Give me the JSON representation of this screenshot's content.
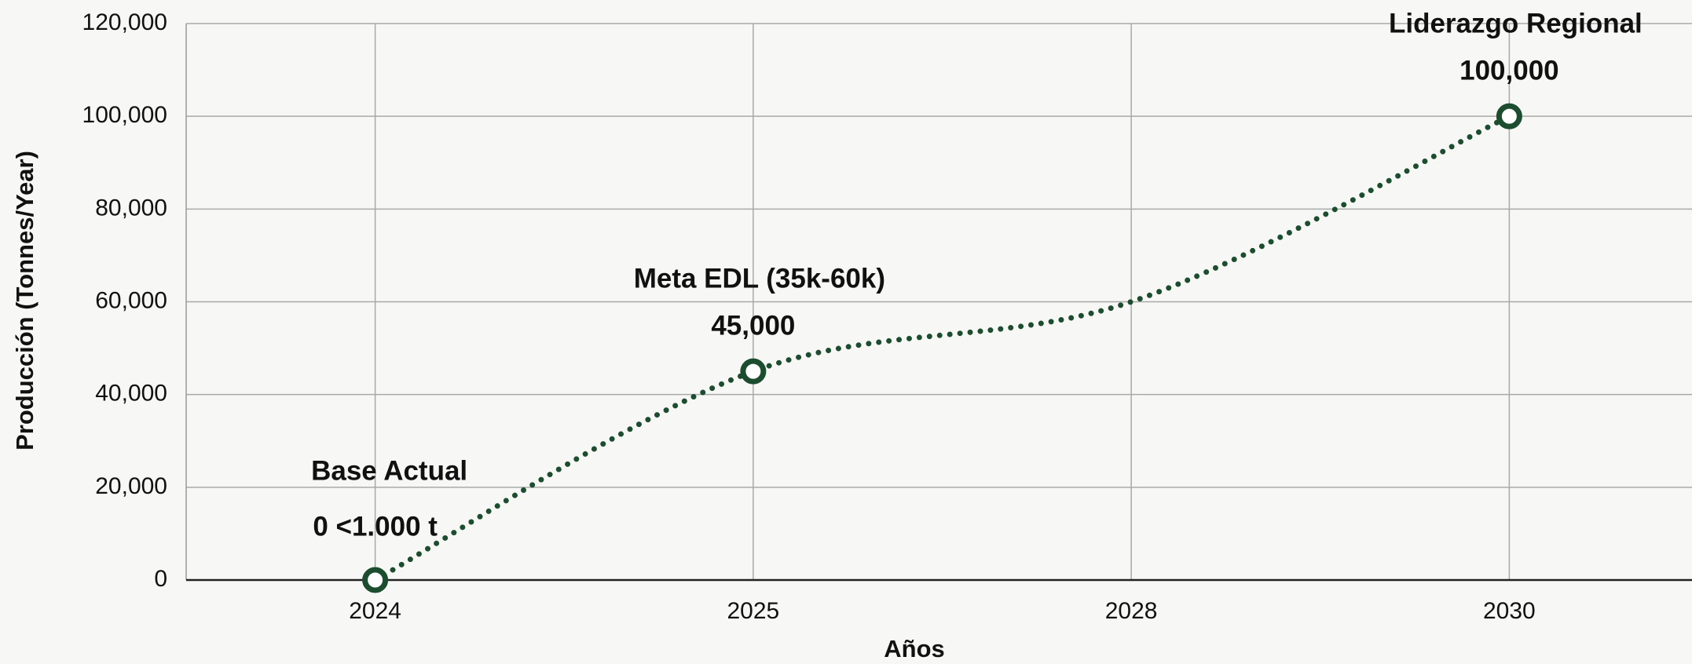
{
  "chart_data": {
    "type": "line",
    "x_label": "Años",
    "y_label": "Producción (Tonnes/Year)",
    "categories": [
      "2024",
      "2025",
      "2028",
      "2030"
    ],
    "series": [
      {
        "color": "#1b4d2e",
        "values": [
          0,
          45000,
          60000,
          100000
        ],
        "value_labels": [
          "0 <1.000 t",
          "45,000",
          null,
          "100,000"
        ],
        "point_titles": [
          "Base Actual",
          "Meta EDL (35k-60k)",
          null,
          "Liderazgo Regional"
        ],
        "markers": [
          true,
          true,
          false,
          true
        ]
      }
    ],
    "ylim": [
      0,
      120000
    ],
    "yticks": [
      {
        "value": 0,
        "label": "0"
      },
      {
        "value": 20000,
        "label": "20,000"
      },
      {
        "value": 40000,
        "label": "40,000"
      },
      {
        "value": 60000,
        "label": "60,000"
      },
      {
        "value": 80000,
        "label": "80,000"
      },
      {
        "value": 100000,
        "label": "100,000"
      },
      {
        "value": 120000,
        "label": "120,000"
      }
    ],
    "grid": true
  }
}
